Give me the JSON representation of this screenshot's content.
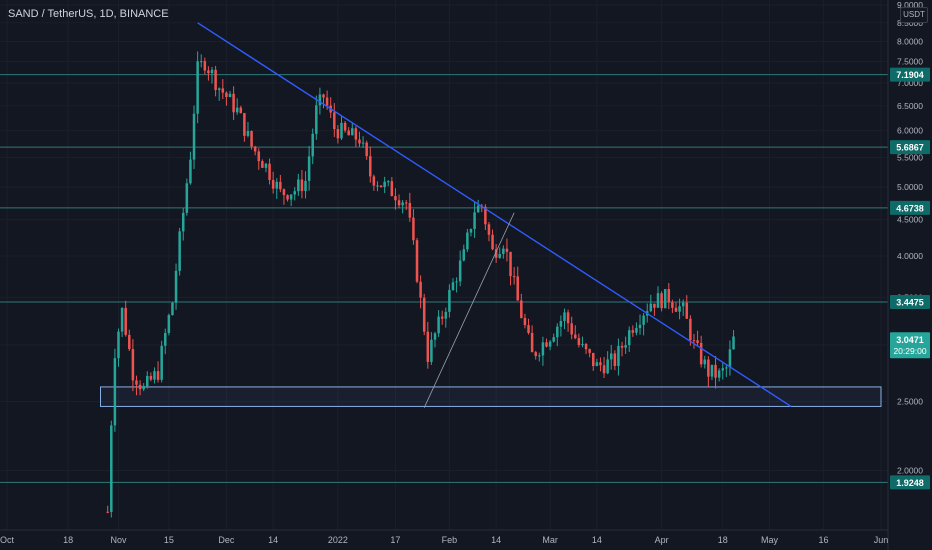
{
  "header": {
    "symbol_title": "SAND / TetherUS, 1D, BINANCE",
    "currency_button": "USDT"
  },
  "colors": {
    "background": "#131722",
    "grid": "#1b1f2a",
    "up": "#26a69a",
    "down": "#ef5350",
    "trendline": "#2f5cff",
    "level_line": "#2e7a7a",
    "support_box": "#8ab0e6",
    "axis_text": "#b2b5be",
    "tag_bg": "#0e6b67",
    "current_tag_bg": "#26a69a"
  },
  "chart_data": {
    "type": "candlestick",
    "title": "SAND / TetherUS, 1D, BINANCE",
    "y_axis": {
      "ylim": [
        1.65,
        9.15
      ],
      "ticks": [
        "2.0000",
        "2.5000",
        "3.0000",
        "3.5000",
        "4.0000",
        "4.5000",
        "5.0000",
        "5.5000",
        "6.0000",
        "6.5000",
        "7.0000",
        "7.5000",
        "8.0000",
        "8.5000",
        "9.0000"
      ],
      "side": "right",
      "scale": "log"
    },
    "x_axis": {
      "range": [
        "2021-10-01",
        "2022-06-01"
      ],
      "ticks": [
        {
          "date": "2021-10-01",
          "label": "Oct"
        },
        {
          "date": "2021-10-18",
          "label": "18"
        },
        {
          "date": "2021-11-01",
          "label": "Nov"
        },
        {
          "date": "2021-11-15",
          "label": "15"
        },
        {
          "date": "2021-12-01",
          "label": "Dec"
        },
        {
          "date": "2021-12-14",
          "label": "14"
        },
        {
          "date": "2022-01-01",
          "label": "2022"
        },
        {
          "date": "2022-01-17",
          "label": "17"
        },
        {
          "date": "2022-02-01",
          "label": "Feb"
        },
        {
          "date": "2022-02-14",
          "label": "14"
        },
        {
          "date": "2022-03-01",
          "label": "Mar"
        },
        {
          "date": "2022-03-14",
          "label": "14"
        },
        {
          "date": "2022-04-01",
          "label": "Apr"
        },
        {
          "date": "2022-04-18",
          "label": "18"
        },
        {
          "date": "2022-05-01",
          "label": "May"
        },
        {
          "date": "2022-05-16",
          "label": "16"
        },
        {
          "date": "2022-06-01",
          "label": "Jun"
        }
      ]
    },
    "price_anchors": [
      [
        "2021-10-29",
        1.75
      ],
      [
        "2021-10-31",
        2.95
      ],
      [
        "2021-11-02",
        3.35
      ],
      [
        "2021-11-05",
        2.75
      ],
      [
        "2021-11-08",
        2.6
      ],
      [
        "2021-11-12",
        2.75
      ],
      [
        "2021-11-16",
        3.45
      ],
      [
        "2021-11-19",
        4.6
      ],
      [
        "2021-11-21",
        5.55
      ],
      [
        "2021-11-23",
        7.3
      ],
      [
        "2021-11-25",
        7.5
      ],
      [
        "2021-11-29",
        6.9
      ],
      [
        "2021-12-04",
        6.4
      ],
      [
        "2021-12-08",
        5.7
      ],
      [
        "2021-12-12",
        5.35
      ],
      [
        "2021-12-16",
        4.9
      ],
      [
        "2021-12-20",
        4.95
      ],
      [
        "2021-12-23",
        5.1
      ],
      [
        "2021-12-26",
        6.4
      ],
      [
        "2021-12-28",
        6.7
      ],
      [
        "2021-12-31",
        6.05
      ],
      [
        "2022-01-04",
        5.9
      ],
      [
        "2022-01-07",
        5.85
      ],
      [
        "2022-01-10",
        5.2
      ],
      [
        "2022-01-13",
        5.05
      ],
      [
        "2022-01-17",
        4.9
      ],
      [
        "2022-01-20",
        4.75
      ],
      [
        "2022-01-24",
        3.45
      ],
      [
        "2022-01-26",
        2.9
      ],
      [
        "2022-01-30",
        3.3
      ],
      [
        "2022-02-05",
        4.0
      ],
      [
        "2022-02-08",
        4.65
      ],
      [
        "2022-02-10",
        4.7
      ],
      [
        "2022-02-13",
        4.05
      ],
      [
        "2022-02-16",
        4.2
      ],
      [
        "2022-02-20",
        3.45
      ],
      [
        "2022-02-24",
        2.9
      ],
      [
        "2022-03-01",
        3.1
      ],
      [
        "2022-03-05",
        3.3
      ],
      [
        "2022-03-09",
        3.0
      ],
      [
        "2022-03-14",
        2.8
      ],
      [
        "2022-03-19",
        2.85
      ],
      [
        "2022-03-24",
        3.2
      ],
      [
        "2022-03-29",
        3.45
      ],
      [
        "2022-04-03",
        3.5
      ],
      [
        "2022-04-07",
        3.35
      ],
      [
        "2022-04-10",
        3.0
      ],
      [
        "2022-04-14",
        2.75
      ],
      [
        "2022-04-17",
        2.72
      ],
      [
        "2022-04-19",
        2.78
      ],
      [
        "2022-04-21",
        3.05
      ]
    ],
    "levels": [
      {
        "label": "7.1904",
        "price": 7.1904
      },
      {
        "label": "5.6867",
        "price": 5.6867
      },
      {
        "label": "4.6738",
        "price": 4.6738
      },
      {
        "label": "3.4475",
        "price": 3.4475
      },
      {
        "label": "1.9248",
        "price": 1.9248
      }
    ],
    "trendlines": [
      {
        "name": "descending",
        "from": [
          "2021-11-23",
          8.5
        ],
        "to": [
          "2022-05-07",
          2.46
        ]
      },
      {
        "name": "rising",
        "from": [
          "2022-01-25",
          2.45
        ],
        "to": [
          "2022-02-19",
          4.6
        ]
      }
    ],
    "support_zone": {
      "from": "2021-10-27",
      "to": "2022-06-01",
      "low": 2.46,
      "high": 2.62
    },
    "current_price": {
      "price": "3.0471",
      "countdown": "20:29:00"
    }
  }
}
